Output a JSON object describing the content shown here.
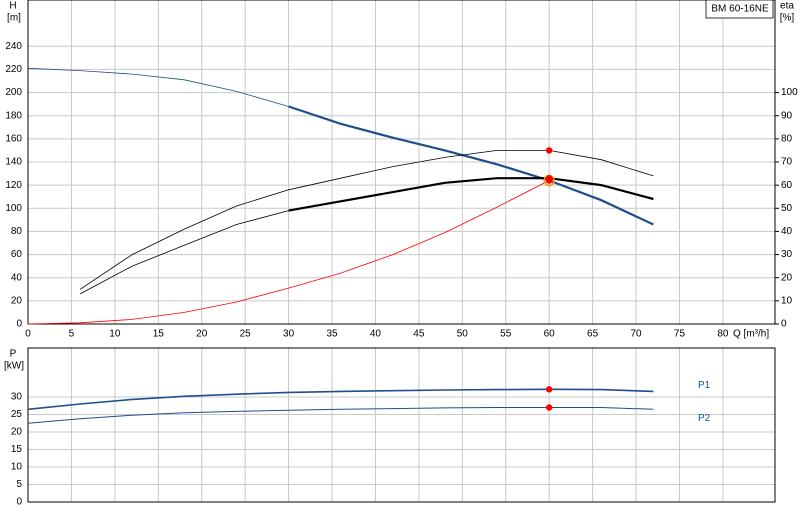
{
  "chart_data": [
    {
      "type": "line",
      "badge": "BM 60-16NE",
      "ylabel": "H",
      "yunit": "[m]",
      "y2label": "eta",
      "y2unit": "[%]",
      "xlabel": "Q [m³/h]",
      "x": [
        0,
        6,
        12,
        18,
        24,
        30,
        36,
        42,
        48,
        54,
        60,
        66,
        72
      ],
      "xlim": [
        0,
        86
      ],
      "xticks": [
        0,
        5,
        10,
        15,
        20,
        25,
        30,
        35,
        40,
        45,
        50,
        55,
        60,
        65,
        70,
        75,
        80
      ],
      "xtick_labels": true,
      "ylim": [
        0,
        280
      ],
      "yticks": [
        0,
        20,
        40,
        60,
        80,
        100,
        120,
        140,
        160,
        180,
        200,
        220,
        240
      ],
      "y2lim": [
        0,
        140
      ],
      "y2ticks": [
        0,
        10,
        20,
        30,
        40,
        50,
        60,
        70,
        80,
        90,
        100
      ],
      "grid": true,
      "series": [
        {
          "color": "#1f4e8c",
          "width": 0.8,
          "values": [
            221,
            219,
            216,
            211,
            201,
            188,
            null,
            null,
            null,
            null,
            null,
            null,
            null
          ]
        },
        {
          "color": "#1f4e8c",
          "width": 2.2,
          "values": [
            null,
            null,
            null,
            null,
            null,
            188,
            173,
            161,
            150,
            138,
            124,
            107,
            86
          ]
        },
        {
          "color": "#000000",
          "width": 0.8,
          "axis": "y2",
          "values": [
            null,
            15,
            30,
            41,
            51,
            58,
            63,
            68,
            72,
            75,
            75,
            71,
            64
          ]
        },
        {
          "color": "#000000",
          "width": 0.8,
          "axis": "y2",
          "values": [
            null,
            13,
            25,
            34,
            43,
            49,
            null,
            null,
            null,
            null,
            null,
            null,
            null
          ]
        },
        {
          "color": "#000000",
          "width": 2.2,
          "axis": "y2",
          "values": [
            null,
            null,
            null,
            null,
            null,
            49,
            53,
            57,
            61,
            63,
            63,
            60,
            54
          ]
        },
        {
          "color": "#ff0000",
          "width": 0.8,
          "values": [
            0,
            1,
            4,
            10,
            19,
            31,
            44,
            60,
            79,
            101,
            124,
            null,
            null
          ]
        }
      ],
      "markers": [
        {
          "x": 60,
          "y": 124,
          "color": "#ff9900",
          "style": "ring"
        },
        {
          "x": 60,
          "y": 124,
          "color": "#ff0000",
          "style": "dot"
        },
        {
          "x": 60,
          "y": 75,
          "color": "#ff0000",
          "style": "dot",
          "axis": "y2"
        },
        {
          "x": 60,
          "y": 63,
          "color": "#ff0000",
          "style": "dot",
          "axis": "y2"
        }
      ]
    },
    {
      "type": "line",
      "ylabel": "P",
      "yunit": "[kW]",
      "x": [
        0,
        6,
        12,
        18,
        24,
        30,
        36,
        42,
        48,
        54,
        60,
        66,
        72
      ],
      "xlim": [
        0,
        86
      ],
      "xticks": [
        0,
        5,
        10,
        15,
        20,
        25,
        30,
        35,
        40,
        45,
        50,
        55,
        60,
        65,
        70,
        75,
        80
      ],
      "xtick_labels": false,
      "ylim": [
        0,
        44
      ],
      "yticks": [
        0,
        5,
        10,
        15,
        20,
        25,
        30
      ],
      "grid": true,
      "series": [
        {
          "name": "P1",
          "color": "#1f4e8c",
          "width": 1.6,
          "values": [
            26.5,
            28,
            29.3,
            30.2,
            30.8,
            31.3,
            31.6,
            31.8,
            32,
            32.1,
            32.2,
            32.1,
            31.6
          ]
        },
        {
          "name": "P2",
          "color": "#1f4e8c",
          "width": 1,
          "values": [
            22.5,
            23.8,
            24.8,
            25.5,
            25.9,
            26.2,
            26.5,
            26.7,
            26.9,
            27,
            27,
            27,
            26.5
          ]
        }
      ],
      "markers": [
        {
          "x": 60,
          "y": 32.2,
          "color": "#ff0000",
          "style": "dot"
        },
        {
          "x": 60,
          "y": 27,
          "color": "#ff0000",
          "style": "dot"
        }
      ]
    }
  ]
}
